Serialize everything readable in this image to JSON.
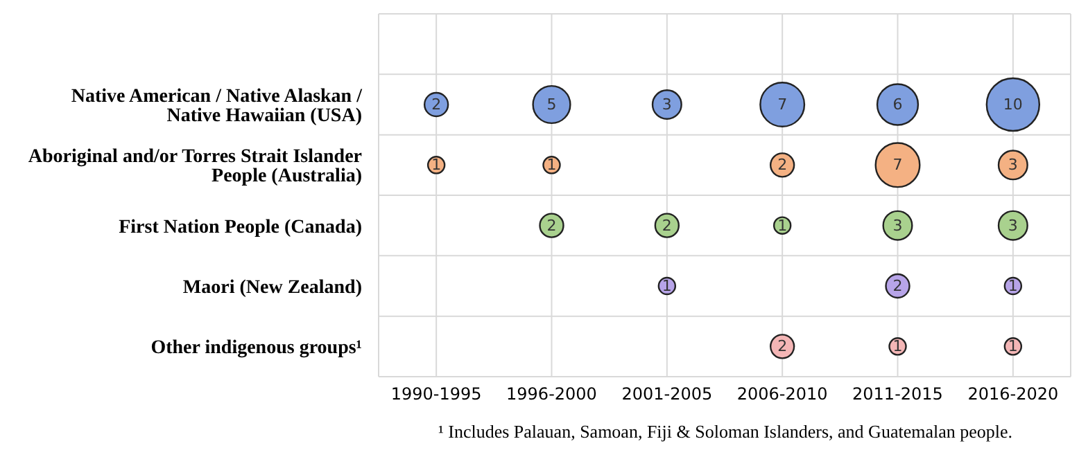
{
  "chart_data": {
    "type": "heatmap",
    "categories": [
      "1990-1995",
      "1996-2000",
      "2001-2005",
      "2006-2010",
      "2011-2015",
      "2016-2020"
    ],
    "y_categories": [
      "Native American / Native Alaskan / Native Hawaiian (USA)",
      "Aboriginal and/or Torres Strait Islander People (Australia)",
      "First Nation People (Canada)",
      "Maori (New Zealand)",
      "Other indigenous groups¹"
    ],
    "cells": [
      [
        2,
        5,
        3,
        7,
        6,
        10
      ],
      [
        1,
        1,
        null,
        2,
        7,
        3
      ],
      [
        null,
        2,
        2,
        1,
        3,
        3
      ],
      [
        null,
        null,
        1,
        null,
        2,
        1
      ],
      [
        null,
        null,
        null,
        2,
        1,
        1
      ]
    ],
    "colors": [
      "#7f9fdf",
      "#f4b183",
      "#a9d18e",
      "#b7a4e8",
      "#f4b6b6"
    ],
    "data_labels": true,
    "grid": true,
    "annotations": [
      "¹ Includes Palauan, Samoan, Fiji & Soloman Islanders, and Guatemalan people."
    ]
  }
}
